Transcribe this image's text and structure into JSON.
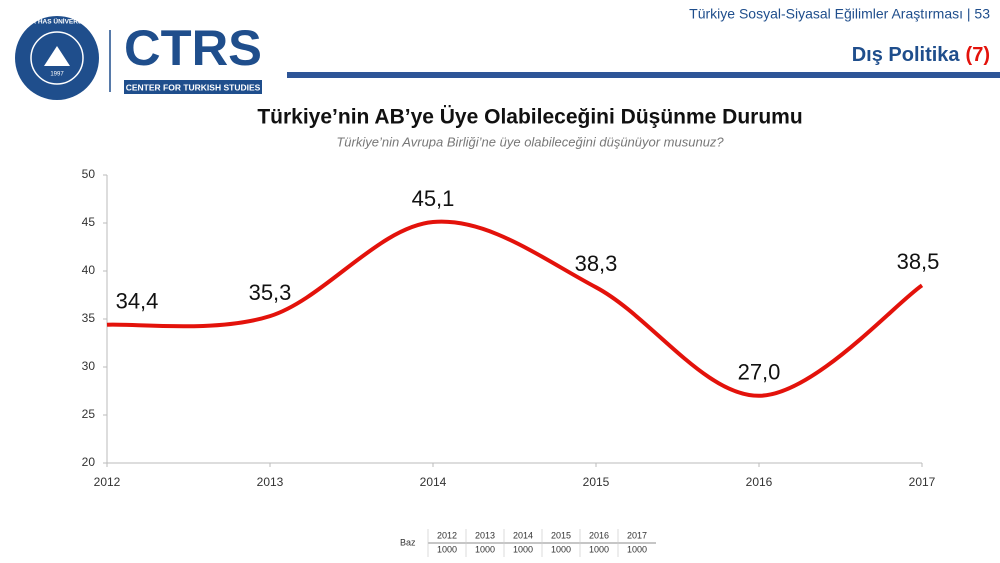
{
  "header": {
    "survey": "Türkiye Sosyal-Siyasal Eğilimler Araştırması | 53",
    "section": "Dış Politika",
    "section_number": "(7)"
  },
  "logo": {
    "university": "KADİR HAS ÜNİVERSİTESİ",
    "year": "1997",
    "brand": "CTRS",
    "brand_subtitle": "CENTER FOR TURKISH STUDIES"
  },
  "chart_data": {
    "type": "line",
    "title": "Türkiye’nin AB’ye Üye Olabileceğini Düşünme Durumu",
    "subtitle": "Türkiye’nin Avrupa Birliği’ne üye olabileceğini düşünüyor musunuz?",
    "x": [
      2012,
      2013,
      2014,
      2015,
      2016,
      2017
    ],
    "values": [
      34.4,
      35.3,
      45.1,
      38.3,
      27.0,
      38.5
    ],
    "value_labels": [
      "34,4",
      "35,3",
      "45,1",
      "38,3",
      "27,0",
      "38,5"
    ],
    "color": "#e3120b",
    "smooth": true,
    "xlim": [
      2012,
      2017
    ],
    "xticks": [
      2012,
      2013,
      2014,
      2015,
      2016,
      2017
    ],
    "ylim": [
      20,
      50
    ],
    "yticks": [
      20,
      25,
      30,
      35,
      40,
      45,
      50
    ],
    "grid": false
  },
  "base_table": {
    "label": "Baz",
    "years": [
      2012,
      2013,
      2014,
      2015,
      2016,
      2017
    ],
    "counts": [
      1000,
      1000,
      1000,
      1000,
      1000,
      1000
    ]
  }
}
